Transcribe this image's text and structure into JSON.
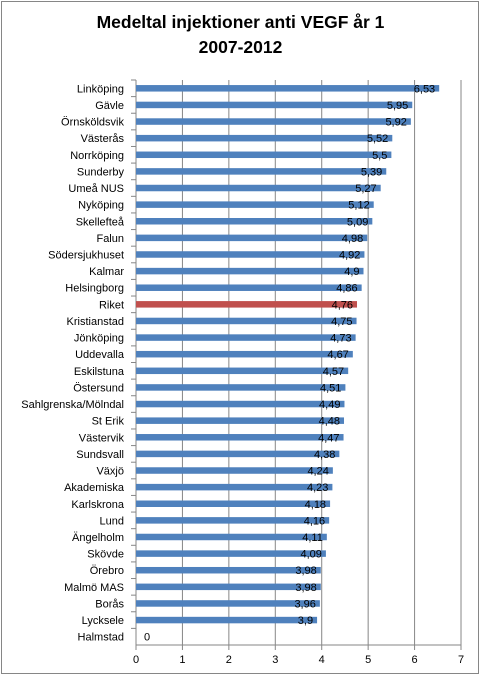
{
  "chart_data": {
    "type": "bar",
    "orientation": "horizontal",
    "title": [
      "Medeltal injektioner anti VEGF år 1",
      "2007-2012"
    ],
    "xlabel": "",
    "ylabel": "",
    "xlim": [
      0,
      7
    ],
    "xticks": [
      "0",
      "1",
      "2",
      "3",
      "4",
      "5",
      "6",
      "7"
    ],
    "grid": "vertical",
    "legend": "none",
    "colors": {
      "bar": "#4f81bd",
      "highlight": "#c0504d",
      "grid": "#868686",
      "axis": "#868686"
    },
    "highlight_category": "Riket",
    "categories": [
      "Linköping",
      "Gävle",
      "Örnsköldsvik",
      "Västerås",
      "Norrköping",
      "Sunderby",
      "Umeå NUS",
      "Nyköping",
      "Skellefteå",
      "Falun",
      "Södersjukhuset",
      "Kalmar",
      "Helsingborg",
      "Riket",
      "Kristianstad",
      "Jönköping",
      "Uddevalla",
      "Eskilstuna",
      "Östersund",
      "Sahlgrenska/Mölndal",
      "St Erik",
      "Västervik",
      "Sundsvall",
      "Växjö",
      "Akademiska",
      "Karlskrona",
      "Lund",
      "Ängelholm",
      "Skövde",
      "Örebro",
      "Malmö MAS",
      "Borås",
      "Lycksele",
      "Halmstad"
    ],
    "values": [
      6.53,
      5.95,
      5.92,
      5.52,
      5.5,
      5.39,
      5.27,
      5.12,
      5.09,
      4.98,
      4.92,
      4.9,
      4.86,
      4.76,
      4.75,
      4.73,
      4.67,
      4.57,
      4.51,
      4.49,
      4.48,
      4.47,
      4.38,
      4.24,
      4.23,
      4.18,
      4.16,
      4.11,
      4.09,
      3.98,
      3.98,
      3.96,
      3.9,
      0
    ],
    "value_labels": [
      "6,53",
      "5,95",
      "5,92",
      "5,52",
      "5,5",
      "5,39",
      "5,27",
      "5,12",
      "5,09",
      "4,98",
      "4,92",
      "4,9",
      "4,86",
      "4,76",
      "4,75",
      "4,73",
      "4,67",
      "4,57",
      "4,51",
      "4,49",
      "4,48",
      "4,47",
      "4,38",
      "4,24",
      "4,23",
      "4,18",
      "4,16",
      "4,11",
      "4,09",
      "3,98",
      "3,98",
      "3,96",
      "3,9",
      "0"
    ]
  }
}
